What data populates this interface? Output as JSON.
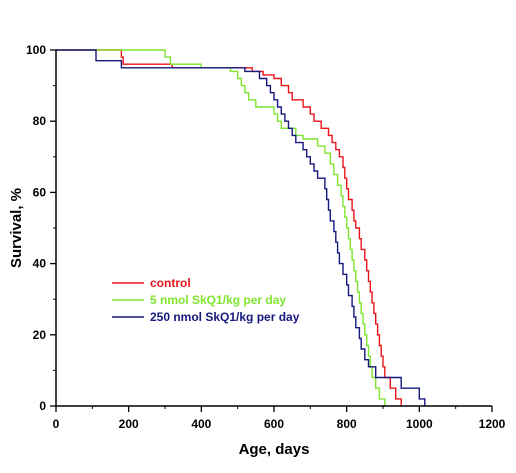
{
  "chart_data": {
    "type": "line",
    "step": true,
    "xlabel": "Age, days",
    "ylabel": "Survival, %",
    "xlim": [
      0,
      1200
    ],
    "ylim": [
      0,
      100
    ],
    "xticks": [
      0,
      200,
      400,
      600,
      800,
      1000,
      1200
    ],
    "yticks": [
      0,
      20,
      40,
      60,
      80,
      100
    ],
    "grid": false,
    "legend_position": "lower-left",
    "series": [
      {
        "name": "control",
        "color": "#e8141b",
        "points": [
          [
            0,
            100
          ],
          [
            180,
            100
          ],
          [
            180,
            98
          ],
          [
            185,
            98
          ],
          [
            185,
            96
          ],
          [
            320,
            96
          ],
          [
            320,
            95
          ],
          [
            540,
            95
          ],
          [
            540,
            94
          ],
          [
            570,
            94
          ],
          [
            570,
            93
          ],
          [
            600,
            93
          ],
          [
            600,
            92
          ],
          [
            620,
            92
          ],
          [
            620,
            90
          ],
          [
            640,
            90
          ],
          [
            640,
            88
          ],
          [
            650,
            88
          ],
          [
            650,
            86
          ],
          [
            680,
            86
          ],
          [
            680,
            84
          ],
          [
            700,
            84
          ],
          [
            700,
            82
          ],
          [
            710,
            82
          ],
          [
            710,
            80
          ],
          [
            730,
            80
          ],
          [
            730,
            78
          ],
          [
            750,
            78
          ],
          [
            750,
            76
          ],
          [
            760,
            76
          ],
          [
            760,
            74
          ],
          [
            770,
            74
          ],
          [
            770,
            72
          ],
          [
            780,
            72
          ],
          [
            780,
            70
          ],
          [
            790,
            70
          ],
          [
            790,
            67
          ],
          [
            795,
            67
          ],
          [
            795,
            64
          ],
          [
            800,
            64
          ],
          [
            800,
            61
          ],
          [
            805,
            61
          ],
          [
            805,
            58
          ],
          [
            815,
            58
          ],
          [
            815,
            55
          ],
          [
            820,
            55
          ],
          [
            820,
            52
          ],
          [
            825,
            52
          ],
          [
            825,
            50
          ],
          [
            835,
            50
          ],
          [
            835,
            47
          ],
          [
            840,
            47
          ],
          [
            840,
            44
          ],
          [
            850,
            44
          ],
          [
            850,
            41
          ],
          [
            855,
            41
          ],
          [
            855,
            38
          ],
          [
            860,
            38
          ],
          [
            860,
            35
          ],
          [
            865,
            35
          ],
          [
            865,
            32
          ],
          [
            870,
            32
          ],
          [
            870,
            29
          ],
          [
            875,
            29
          ],
          [
            875,
            26
          ],
          [
            880,
            26
          ],
          [
            880,
            23
          ],
          [
            885,
            23
          ],
          [
            885,
            20
          ],
          [
            890,
            20
          ],
          [
            890,
            17
          ],
          [
            895,
            17
          ],
          [
            895,
            14
          ],
          [
            900,
            14
          ],
          [
            900,
            11
          ],
          [
            905,
            11
          ],
          [
            905,
            8
          ],
          [
            920,
            8
          ],
          [
            920,
            5
          ],
          [
            935,
            5
          ],
          [
            935,
            2
          ],
          [
            950,
            2
          ],
          [
            950,
            0
          ]
        ]
      },
      {
        "name": "5 nmol SkQ1/kg per day",
        "color": "#7fe52f",
        "points": [
          [
            0,
            100
          ],
          [
            300,
            100
          ],
          [
            300,
            98
          ],
          [
            315,
            98
          ],
          [
            315,
            96
          ],
          [
            400,
            96
          ],
          [
            400,
            95
          ],
          [
            480,
            95
          ],
          [
            480,
            94
          ],
          [
            500,
            94
          ],
          [
            500,
            92
          ],
          [
            510,
            92
          ],
          [
            510,
            90
          ],
          [
            520,
            90
          ],
          [
            520,
            88
          ],
          [
            530,
            88
          ],
          [
            530,
            86
          ],
          [
            550,
            86
          ],
          [
            550,
            84
          ],
          [
            600,
            84
          ],
          [
            600,
            82
          ],
          [
            610,
            82
          ],
          [
            610,
            80
          ],
          [
            620,
            80
          ],
          [
            620,
            78
          ],
          [
            660,
            78
          ],
          [
            660,
            76
          ],
          [
            680,
            76
          ],
          [
            680,
            75
          ],
          [
            720,
            75
          ],
          [
            720,
            73
          ],
          [
            740,
            73
          ],
          [
            740,
            71
          ],
          [
            755,
            71
          ],
          [
            755,
            68
          ],
          [
            765,
            68
          ],
          [
            765,
            65
          ],
          [
            775,
            65
          ],
          [
            775,
            62
          ],
          [
            785,
            62
          ],
          [
            785,
            59
          ],
          [
            790,
            59
          ],
          [
            790,
            56
          ],
          [
            795,
            56
          ],
          [
            795,
            53
          ],
          [
            800,
            53
          ],
          [
            800,
            50
          ],
          [
            805,
            50
          ],
          [
            805,
            47
          ],
          [
            810,
            47
          ],
          [
            810,
            44
          ],
          [
            815,
            44
          ],
          [
            815,
            41
          ],
          [
            820,
            41
          ],
          [
            820,
            38
          ],
          [
            825,
            38
          ],
          [
            825,
            35
          ],
          [
            830,
            35
          ],
          [
            830,
            32
          ],
          [
            835,
            32
          ],
          [
            835,
            29
          ],
          [
            840,
            29
          ],
          [
            840,
            26
          ],
          [
            845,
            26
          ],
          [
            845,
            23
          ],
          [
            850,
            23
          ],
          [
            850,
            20
          ],
          [
            855,
            20
          ],
          [
            855,
            17
          ],
          [
            860,
            17
          ],
          [
            860,
            14
          ],
          [
            865,
            14
          ],
          [
            865,
            11
          ],
          [
            870,
            11
          ],
          [
            870,
            8
          ],
          [
            880,
            8
          ],
          [
            880,
            5
          ],
          [
            890,
            5
          ],
          [
            890,
            2
          ],
          [
            905,
            2
          ],
          [
            905,
            0
          ]
        ]
      },
      {
        "name": "250 nmol SkQ1/kg per day",
        "color": "#16187e",
        "points": [
          [
            0,
            100
          ],
          [
            110,
            100
          ],
          [
            110,
            97
          ],
          [
            180,
            97
          ],
          [
            180,
            95
          ],
          [
            520,
            95
          ],
          [
            520,
            94
          ],
          [
            560,
            94
          ],
          [
            560,
            92
          ],
          [
            580,
            92
          ],
          [
            580,
            90
          ],
          [
            590,
            90
          ],
          [
            590,
            88
          ],
          [
            600,
            88
          ],
          [
            600,
            86
          ],
          [
            610,
            86
          ],
          [
            610,
            84
          ],
          [
            620,
            84
          ],
          [
            620,
            82
          ],
          [
            630,
            82
          ],
          [
            630,
            80
          ],
          [
            640,
            80
          ],
          [
            640,
            78
          ],
          [
            650,
            78
          ],
          [
            650,
            76
          ],
          [
            660,
            76
          ],
          [
            660,
            74
          ],
          [
            680,
            74
          ],
          [
            680,
            72
          ],
          [
            690,
            72
          ],
          [
            690,
            70
          ],
          [
            700,
            70
          ],
          [
            700,
            68
          ],
          [
            710,
            68
          ],
          [
            710,
            66
          ],
          [
            720,
            66
          ],
          [
            720,
            64
          ],
          [
            740,
            64
          ],
          [
            740,
            61
          ],
          [
            745,
            61
          ],
          [
            745,
            58
          ],
          [
            750,
            58
          ],
          [
            750,
            55
          ],
          [
            755,
            55
          ],
          [
            755,
            52
          ],
          [
            765,
            52
          ],
          [
            765,
            49
          ],
          [
            770,
            49
          ],
          [
            770,
            46
          ],
          [
            775,
            46
          ],
          [
            775,
            43
          ],
          [
            780,
            43
          ],
          [
            780,
            40
          ],
          [
            790,
            40
          ],
          [
            790,
            37
          ],
          [
            800,
            37
          ],
          [
            800,
            34
          ],
          [
            805,
            34
          ],
          [
            805,
            31
          ],
          [
            815,
            31
          ],
          [
            815,
            28
          ],
          [
            820,
            28
          ],
          [
            820,
            25
          ],
          [
            825,
            25
          ],
          [
            825,
            22
          ],
          [
            835,
            22
          ],
          [
            835,
            19
          ],
          [
            840,
            19
          ],
          [
            840,
            16
          ],
          [
            850,
            16
          ],
          [
            850,
            13
          ],
          [
            860,
            13
          ],
          [
            860,
            11
          ],
          [
            880,
            11
          ],
          [
            880,
            8
          ],
          [
            950,
            8
          ],
          [
            950,
            5
          ],
          [
            1000,
            5
          ],
          [
            1000,
            2
          ],
          [
            1015,
            2
          ],
          [
            1015,
            0
          ]
        ]
      }
    ]
  }
}
